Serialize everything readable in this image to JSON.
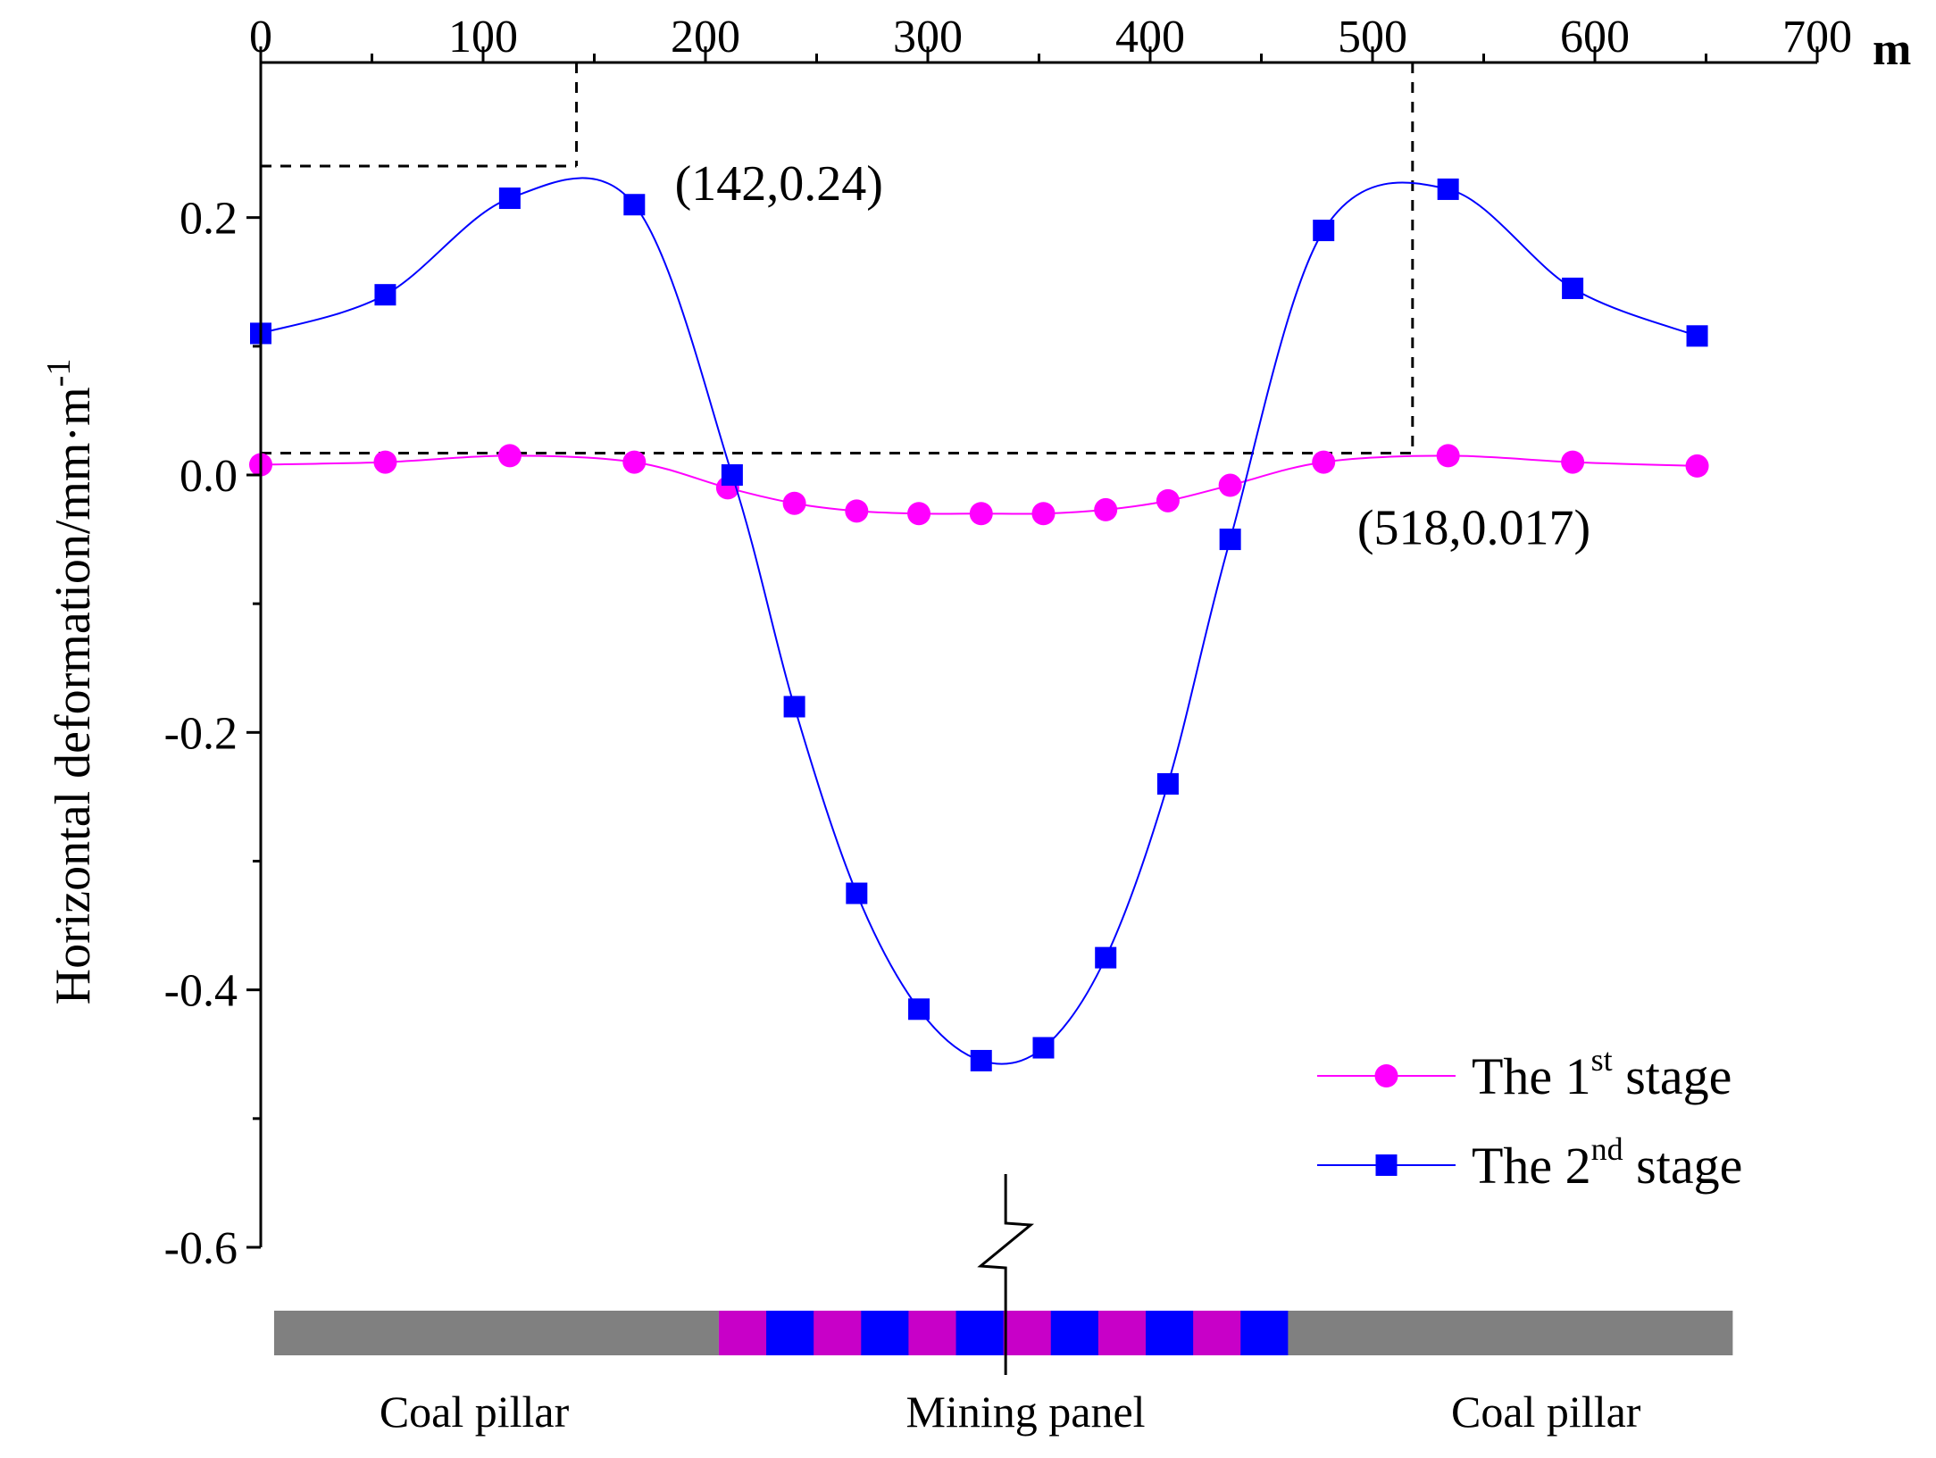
{
  "chart_data": {
    "type": "line",
    "title": "",
    "xlabel": "",
    "x_unit": "m",
    "ylabel": "Horizontal deformation/mm·m",
    "ylabel_sup": "-1",
    "xlim": [
      0,
      700
    ],
    "ylim": [
      -0.6,
      0.3
    ],
    "x_ticks": [
      0,
      100,
      200,
      300,
      400,
      500,
      600,
      700
    ],
    "x_tick_labels": [
      "0",
      "100",
      "200",
      "300",
      "400",
      "500",
      "600",
      "700"
    ],
    "y_ticks": [
      0.2,
      0.0,
      -0.2,
      -0.4,
      -0.6
    ],
    "y_tick_labels": [
      "0.2",
      "0.0",
      "-0.2",
      "-0.4",
      "-0.6"
    ],
    "x_minor_ticks": [
      50,
      150,
      250,
      350,
      450,
      550,
      650
    ],
    "y_minor_ticks": [
      0.1,
      -0.1,
      -0.3,
      -0.5
    ],
    "legend_position": "bottom-right",
    "series": [
      {
        "name": "The 1st stage",
        "legend_main": "The 1",
        "legend_sup": "st",
        "legend_tail": " stage",
        "color": "#ff00ff",
        "marker": "circle",
        "x": [
          0,
          56,
          112,
          168,
          210,
          240,
          268,
          296,
          324,
          352,
          380,
          408,
          436,
          478,
          534,
          590,
          646
        ],
        "y": [
          0.008,
          0.01,
          0.015,
          0.01,
          -0.01,
          -0.022,
          -0.028,
          -0.03,
          -0.03,
          -0.03,
          -0.027,
          -0.02,
          -0.008,
          0.01,
          0.015,
          0.01,
          0.007
        ]
      },
      {
        "name": "The 2nd stage",
        "legend_main": "The 2",
        "legend_sup": "nd",
        "legend_tail": " stage",
        "color": "#0000ff",
        "marker": "square",
        "x": [
          0,
          56,
          112,
          168,
          212,
          240,
          268,
          296,
          324,
          352,
          380,
          408,
          436,
          478,
          534,
          590,
          646
        ],
        "y": [
          0.11,
          0.14,
          0.215,
          0.21,
          0.0,
          -0.18,
          -0.325,
          -0.415,
          -0.455,
          -0.445,
          -0.375,
          -0.24,
          -0.05,
          0.19,
          0.222,
          0.145,
          0.108
        ]
      }
    ],
    "annotations": [
      {
        "text": "(142,0.24)",
        "x": 142,
        "y": 0.24
      },
      {
        "text": "(518,0.017)",
        "x": 518,
        "y": 0.017
      }
    ],
    "strip": {
      "left_label": "Coal pillar",
      "center_label": "Mining panel",
      "right_label": "Coal pillar",
      "pillar_color": "#808080",
      "panel_colors": [
        "#c800c8",
        "#0000ff"
      ],
      "pillar_left_range": [
        6,
        206
      ],
      "panel_range": [
        206,
        462
      ],
      "pillar_right_range": [
        462,
        662
      ],
      "panel_segments": 12
    }
  }
}
